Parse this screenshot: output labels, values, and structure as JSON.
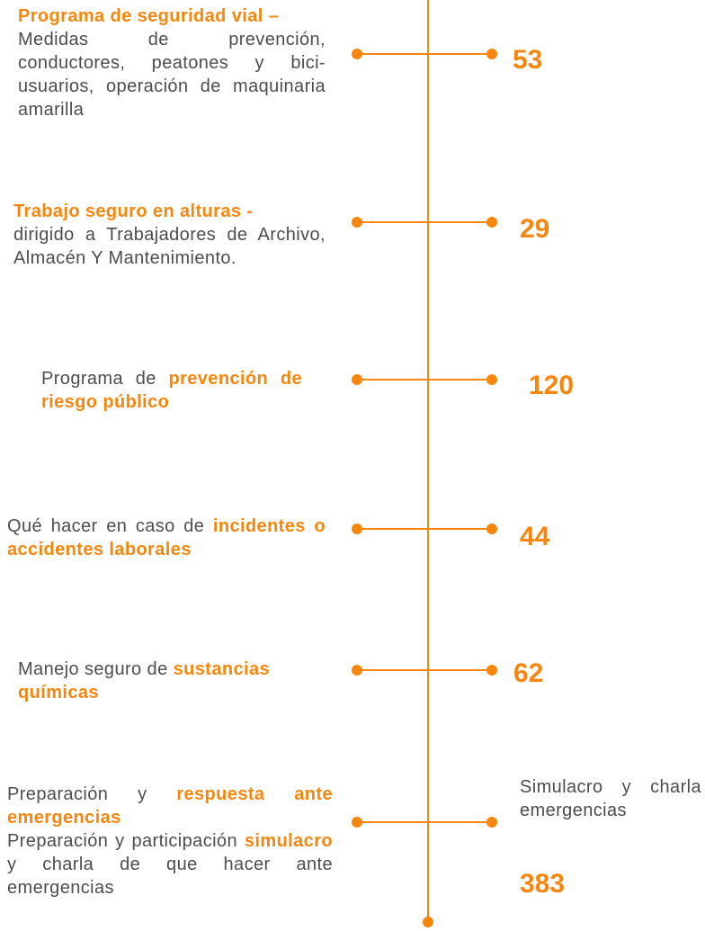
{
  "items": [
    {
      "paragraphs": [
        [
          {
            "text": "Programa de seguridad vial –",
            "highlight": true
          }
        ],
        [
          {
            "text": "Medidas de prevención, conductores, peatones y bici-usuarios, operación de maquinaria amarilla",
            "highlight": false
          }
        ]
      ],
      "number": "53"
    },
    {
      "paragraphs": [
        [
          {
            "text": "Trabajo seguro en alturas -",
            "highlight": true
          }
        ],
        [
          {
            "text": "dirigido a Trabajadores de Archivo, Almacén Y Mantenimiento.",
            "highlight": false
          }
        ]
      ],
      "number": "29"
    },
    {
      "paragraphs": [
        [
          {
            "text": "Programa de ",
            "highlight": false
          },
          {
            "text": "prevención de riesgo público",
            "highlight": true
          }
        ]
      ],
      "number": "120"
    },
    {
      "paragraphs": [
        [
          {
            "text": "Qué hacer en caso de ",
            "highlight": false
          },
          {
            "text": "incidentes o accidentes laborales",
            "highlight": true
          }
        ]
      ],
      "number": "44"
    },
    {
      "paragraphs": [
        [
          {
            "text": "Manejo seguro de ",
            "highlight": false
          },
          {
            "text": "sustancias químicas",
            "highlight": true
          }
        ]
      ],
      "number": "62"
    },
    {
      "paragraphs": [
        [
          {
            "text": "Preparación y ",
            "highlight": false
          },
          {
            "text": "respuesta ante emergencias",
            "highlight": true
          }
        ],
        [
          {
            "text": "Preparación y participación ",
            "highlight": false
          },
          {
            "text": "simulacro",
            "highlight": true
          },
          {
            "text": " y charla de que hacer ante emergencias",
            "highlight": false
          }
        ]
      ],
      "caption": "Simulacro y charla emergencias",
      "number": "383"
    }
  ]
}
